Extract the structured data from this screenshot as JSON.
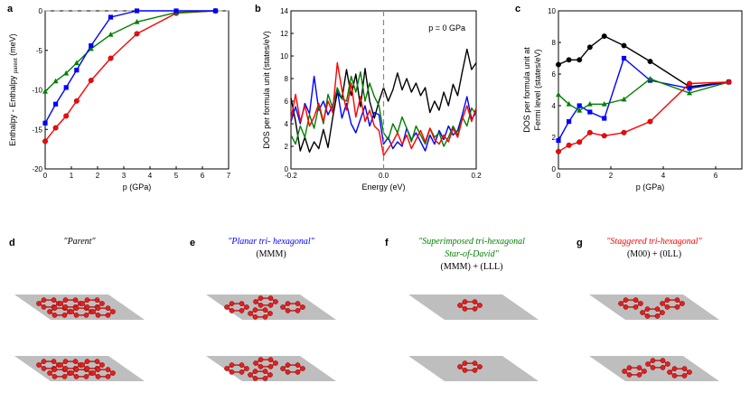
{
  "panels": {
    "a": "a",
    "b": "b",
    "c": "c",
    "d": "d",
    "e": "e",
    "f": "f",
    "g": "g"
  },
  "structures": [
    {
      "letter": "d",
      "title": "\"Parent\"",
      "title2": "",
      "subtitle": "",
      "color": "#000000"
    },
    {
      "letter": "e",
      "title": "\"Planar tri- hexagonal\"",
      "title2": "",
      "subtitle": "(MMM)",
      "color": "#0000ff"
    },
    {
      "letter": "f",
      "title": "\"Superimposed tri-hexagonal",
      "title2": "Star-of-David\"",
      "subtitle": "(MMM) + (LLL)",
      "color": "#008000"
    },
    {
      "letter": "g",
      "title": "\"Staggered tri-hexagonal\"",
      "title2": "",
      "subtitle": "(M00) + (0LL)",
      "color": "#ff0000"
    }
  ],
  "chart_data": [
    {
      "panel": "a",
      "type": "line",
      "xlabel": "p (GPa)",
      "ylabel": "Enthalpy - Enthalpy",
      "ylabel_sub": "parent",
      "ylabel_unit": "(meV)",
      "xlim": [
        0,
        7
      ],
      "ylim": [
        -20,
        0
      ],
      "xticks": [
        0,
        1,
        2,
        3,
        4,
        5,
        6,
        7
      ],
      "yticks": [
        0,
        -5,
        -10,
        -15,
        -20
      ],
      "reference_line": 0,
      "series": [
        {
          "color": "#ff0000",
          "marker": "circle",
          "x": [
            0,
            0.4,
            0.8,
            1.2,
            1.75,
            2.5,
            3.5,
            5.0,
            6.5
          ],
          "y": [
            -16.5,
            -14.8,
            -13.3,
            -11.4,
            -8.8,
            -6.0,
            -2.9,
            -0.3,
            0
          ]
        },
        {
          "color": "#008000",
          "marker": "triangle",
          "x": [
            0,
            0.4,
            0.8,
            1.2,
            1.75,
            2.5,
            3.5,
            5.0,
            6.5
          ],
          "y": [
            -10.2,
            -8.9,
            -7.9,
            -6.6,
            -4.8,
            -3.0,
            -1.4,
            -0.2,
            0
          ]
        },
        {
          "color": "#0000ff",
          "marker": "square",
          "x": [
            0,
            0.4,
            0.8,
            1.2,
            1.75,
            2.5,
            3.5,
            5.0,
            6.5
          ],
          "y": [
            -14.2,
            -11.8,
            -9.7,
            -7.5,
            -4.4,
            -0.8,
            0,
            0,
            0
          ]
        }
      ]
    },
    {
      "panel": "b",
      "type": "line",
      "annotation": "p = 0 GPa",
      "xlabel": "Energy (eV)",
      "ylabel": "DOS per formula unit (states/eV)",
      "xlim": [
        -0.2,
        0.2
      ],
      "ylim": [
        0,
        14
      ],
      "xticks": [
        -0.2,
        0.0,
        0.2
      ],
      "xticklabels": [
        "-0.2",
        "0.0",
        "0.2"
      ],
      "yticks": [
        0,
        2,
        4,
        6,
        8,
        10,
        12,
        14
      ],
      "fermi_line": 0,
      "series": [
        {
          "color": "#000000",
          "x": [
            -0.2,
            -0.19,
            -0.18,
            -0.17,
            -0.16,
            -0.15,
            -0.14,
            -0.13,
            -0.12,
            -0.11,
            -0.1,
            -0.09,
            -0.08,
            -0.07,
            -0.06,
            -0.05,
            -0.04,
            -0.03,
            -0.02,
            -0.01,
            0,
            0.01,
            0.02,
            0.03,
            0.04,
            0.05,
            0.06,
            0.07,
            0.08,
            0.09,
            0.1,
            0.11,
            0.12,
            0.13,
            0.14,
            0.15,
            0.16,
            0.17,
            0.18,
            0.19,
            0.2
          ],
          "y": [
            6.3,
            4.2,
            1.6,
            2.8,
            1.5,
            2.4,
            1.8,
            3.5,
            1.9,
            4.5,
            6.8,
            6.2,
            8.8,
            6.5,
            8.4,
            5.5,
            8.9,
            6.0,
            4.5,
            6.0,
            7.2,
            6.0,
            7.0,
            8.5,
            7.0,
            8.0,
            6.8,
            7.6,
            6.5,
            7.2,
            5.0,
            6.0,
            5.2,
            6.8,
            5.6,
            7.5,
            6.5,
            8.6,
            10.6,
            8.8,
            9.4
          ]
        },
        {
          "color": "#0000ff",
          "x": [
            -0.2,
            -0.19,
            -0.18,
            -0.17,
            -0.16,
            -0.15,
            -0.14,
            -0.13,
            -0.12,
            -0.11,
            -0.1,
            -0.09,
            -0.08,
            -0.07,
            -0.06,
            -0.05,
            -0.04,
            -0.03,
            -0.02,
            -0.01,
            0,
            0.01,
            0.02,
            0.03,
            0.04,
            0.05,
            0.06,
            0.07,
            0.08,
            0.09,
            0.1,
            0.11,
            0.12,
            0.13,
            0.14,
            0.15,
            0.16,
            0.17,
            0.18,
            0.19,
            0.2
          ],
          "y": [
            4.2,
            5.5,
            4.0,
            5.8,
            4.9,
            8.2,
            5.2,
            6.0,
            4.8,
            5.6,
            7.0,
            4.5,
            5.8,
            4.0,
            3.2,
            4.4,
            5.6,
            3.8,
            5.0,
            4.8,
            2.2,
            2.8,
            1.8,
            2.4,
            2.0,
            3.6,
            2.6,
            3.2,
            2.4,
            1.6,
            3.0,
            2.2,
            3.4,
            2.6,
            3.8,
            3.0,
            3.4,
            4.8,
            6.4,
            4.4,
            5.0
          ]
        },
        {
          "color": "#008000",
          "x": [
            -0.2,
            -0.19,
            -0.18,
            -0.17,
            -0.16,
            -0.15,
            -0.14,
            -0.13,
            -0.12,
            -0.11,
            -0.1,
            -0.09,
            -0.08,
            -0.07,
            -0.06,
            -0.05,
            -0.04,
            -0.03,
            -0.02,
            -0.01,
            0,
            0.01,
            0.02,
            0.03,
            0.04,
            0.05,
            0.06,
            0.07,
            0.08,
            0.09,
            0.1,
            0.11,
            0.12,
            0.13,
            0.14,
            0.15,
            0.16,
            0.17,
            0.18,
            0.19,
            0.2
          ],
          "y": [
            3.0,
            2.2,
            3.8,
            2.8,
            4.8,
            3.6,
            5.6,
            4.0,
            6.6,
            5.4,
            7.2,
            6.2,
            6.0,
            8.2,
            6.8,
            8.6,
            6.0,
            7.6,
            6.4,
            5.6,
            3.2,
            2.6,
            4.0,
            3.2,
            4.6,
            3.6,
            2.4,
            3.8,
            3.0,
            2.2,
            3.6,
            2.8,
            3.2,
            2.0,
            2.8,
            3.8,
            3.0,
            4.6,
            3.8,
            5.4,
            4.8
          ]
        },
        {
          "color": "#ff0000",
          "x": [
            -0.2,
            -0.19,
            -0.18,
            -0.17,
            -0.16,
            -0.15,
            -0.14,
            -0.13,
            -0.12,
            -0.11,
            -0.1,
            -0.09,
            -0.08,
            -0.07,
            -0.06,
            -0.05,
            -0.04,
            -0.03,
            -0.02,
            -0.01,
            0,
            0.01,
            0.02,
            0.03,
            0.04,
            0.05,
            0.06,
            0.07,
            0.08,
            0.09,
            0.1,
            0.11,
            0.12,
            0.13,
            0.14,
            0.15,
            0.16,
            0.17,
            0.18,
            0.19,
            0.2
          ],
          "y": [
            4.4,
            6.6,
            4.2,
            5.6,
            3.8,
            4.6,
            5.8,
            4.2,
            6.0,
            5.0,
            9.4,
            7.0,
            5.2,
            7.6,
            4.6,
            6.4,
            4.2,
            5.2,
            3.8,
            3.4,
            1.2,
            1.8,
            2.4,
            3.2,
            2.2,
            3.0,
            1.8,
            2.6,
            3.4,
            2.4,
            3.6,
            2.6,
            2.2,
            3.0,
            2.4,
            3.6,
            2.8,
            4.4,
            5.6,
            4.2,
            5.4
          ]
        }
      ]
    },
    {
      "panel": "c",
      "type": "line",
      "xlabel": "p (GPa)",
      "ylabel": "DOS per formula unit at",
      "ylabel2": "Fermi level (states/eV)",
      "xlim": [
        0,
        7
      ],
      "ylim": [
        0,
        10
      ],
      "xticks": [
        0,
        2,
        4,
        6
      ],
      "yticks": [
        0,
        2,
        4,
        6,
        8,
        10
      ],
      "series": [
        {
          "color": "#000000",
          "marker": "circle",
          "x": [
            0,
            0.4,
            0.8,
            1.2,
            1.75,
            2.5,
            3.5,
            5.0,
            6.5
          ],
          "y": [
            6.6,
            6.9,
            6.9,
            7.7,
            8.4,
            7.8,
            6.8,
            5.2,
            5.5
          ]
        },
        {
          "color": "#0000ff",
          "marker": "square",
          "x": [
            0,
            0.4,
            0.8,
            1.2,
            1.75,
            2.5,
            3.5,
            5.0,
            6.5
          ],
          "y": [
            1.8,
            3.0,
            4.0,
            3.6,
            3.2,
            7.0,
            5.6,
            5.1,
            5.5
          ]
        },
        {
          "color": "#008000",
          "marker": "triangle",
          "x": [
            0,
            0.4,
            0.8,
            1.2,
            1.75,
            2.5,
            3.5,
            5.0,
            6.5
          ],
          "y": [
            4.7,
            4.1,
            3.7,
            4.1,
            4.1,
            4.4,
            5.7,
            4.8,
            5.5
          ]
        },
        {
          "color": "#ff0000",
          "marker": "circle",
          "x": [
            0,
            0.4,
            0.8,
            1.2,
            1.75,
            2.5,
            3.5,
            5.0,
            6.5
          ],
          "y": [
            1.1,
            1.5,
            1.7,
            2.3,
            2.1,
            2.3,
            3.0,
            5.4,
            5.5
          ]
        }
      ]
    }
  ]
}
